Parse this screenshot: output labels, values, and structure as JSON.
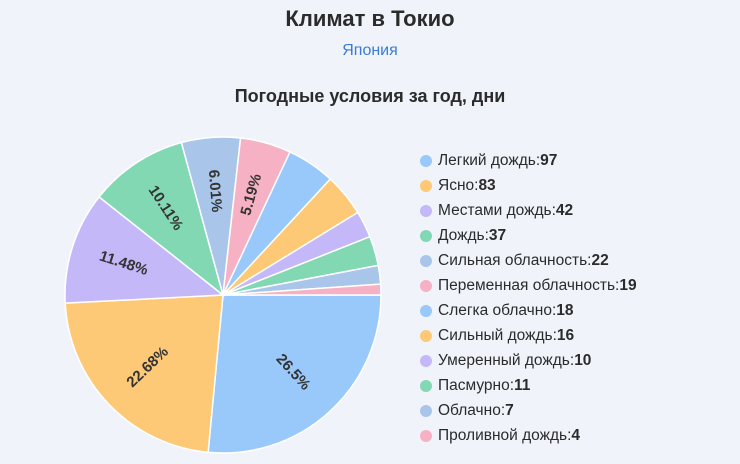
{
  "header": {
    "title": "Климат в Токио",
    "subtitle": "Япония"
  },
  "chart_data": {
    "type": "pie",
    "title": "Погодные условия за год, дни",
    "slices": [
      {
        "label": "Легкий дождь",
        "value": 97,
        "percent_label": "26.5%",
        "color": "#99c8fb"
      },
      {
        "label": "Ясно",
        "value": 83,
        "percent_label": "22.68%",
        "color": "#fdc977"
      },
      {
        "label": "Местами дождь",
        "value": 42,
        "percent_label": "11.48%",
        "color": "#c4b8f8"
      },
      {
        "label": "Дождь",
        "value": 37,
        "percent_label": "10.11%",
        "color": "#82d8b3"
      },
      {
        "label": "Сильная облачность",
        "value": 22,
        "percent_label": "6.01%",
        "color": "#a9c6ea"
      },
      {
        "label": "Переменная облачность",
        "value": 19,
        "percent_label": "5.19%",
        "color": "#f7b1c4"
      },
      {
        "label": "Слегка облачно",
        "value": 18,
        "percent_label": "",
        "color": "#99c8fb"
      },
      {
        "label": "Сильный дождь",
        "value": 16,
        "percent_label": "",
        "color": "#fdc977"
      },
      {
        "label": "Умеренный дождь",
        "value": 10,
        "percent_label": "",
        "color": "#c4b8f8"
      },
      {
        "label": "Пасмурно",
        "value": 11,
        "percent_label": "",
        "color": "#82d8b3"
      },
      {
        "label": "Облачно",
        "value": 7,
        "percent_label": "",
        "color": "#a9c6ea"
      },
      {
        "label": "Проливной дождь",
        "value": 4,
        "percent_label": "",
        "color": "#f7b1c4"
      }
    ],
    "legend_position": "right"
  }
}
